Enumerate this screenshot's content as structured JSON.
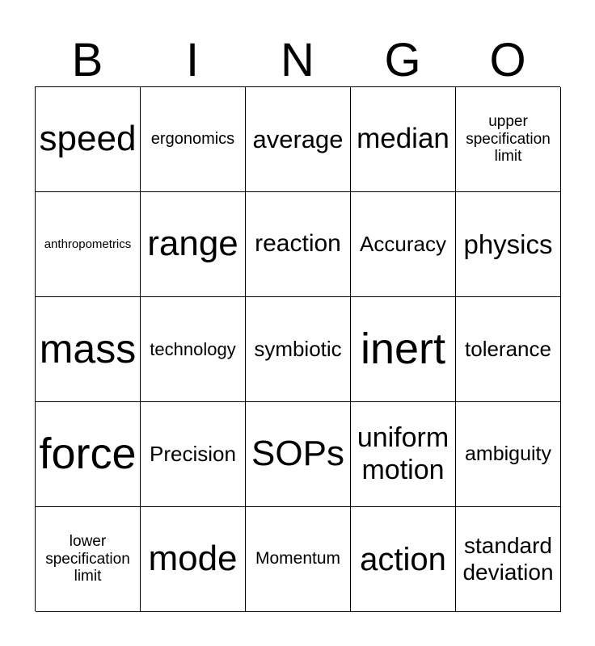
{
  "header": [
    "B",
    "I",
    "N",
    "G",
    "O"
  ],
  "cells": [
    [
      "speed",
      "ergonomics",
      "average",
      "median",
      "upper specification limit"
    ],
    [
      "anthropometrics",
      "range",
      "reaction",
      "Accuracy",
      "physics"
    ],
    [
      "mass",
      "technology",
      "symbiotic",
      "inert",
      "tolerance"
    ],
    [
      "force",
      "Precision",
      "SOPs",
      "uniform motion",
      "ambiguity"
    ],
    [
      "lower specification limit",
      "mode",
      "Momentum",
      "action",
      "standard deviation"
    ]
  ]
}
